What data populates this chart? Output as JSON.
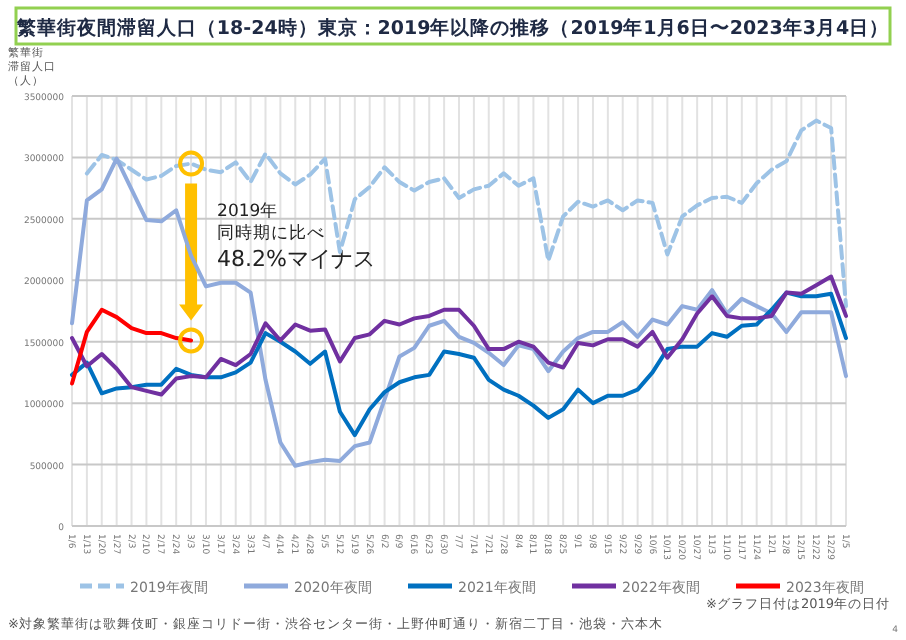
{
  "chart_data": {
    "type": "line",
    "title": "繁華街夜間滞留人口（18-24時）東京：2019年以降の推移（2019年1月6日〜2023年3月4日）",
    "ylabel": "繁華街滞留人口（人）",
    "categories": [
      "1/6",
      "1/13",
      "1/20",
      "1/27",
      "2/3",
      "2/10",
      "2/17",
      "2/24",
      "3/3",
      "3/10",
      "3/17",
      "3/24",
      "3/31",
      "4/7",
      "4/14",
      "4/21",
      "4/28",
      "5/5",
      "5/12",
      "5/19",
      "5/26",
      "6/2",
      "6/9",
      "6/16",
      "6/23",
      "6/30",
      "7/7",
      "7/14",
      "7/21",
      "7/28",
      "8/4",
      "8/11",
      "8/18",
      "8/25",
      "9/1",
      "9/8",
      "9/15",
      "9/22",
      "9/29",
      "10/6",
      "10/13",
      "10/20",
      "10/27",
      "11/3",
      "11/10",
      "11/17",
      "11/24",
      "12/1",
      "12/8",
      "12/15",
      "12/22",
      "12/29",
      "1/5"
    ],
    "series": [
      {
        "name": "2019年夜間",
        "color": "#9dc3e6",
        "line_style": "dashed",
        "values": [
          null,
          2870000,
          3020000,
          2980000,
          2900000,
          2820000,
          2850000,
          2930000,
          2950000,
          2900000,
          2880000,
          2960000,
          2800000,
          3030000,
          2870000,
          2780000,
          2860000,
          2990000,
          2230000,
          2660000,
          2760000,
          2920000,
          2800000,
          2730000,
          2800000,
          2830000,
          2670000,
          2740000,
          2770000,
          2870000,
          2770000,
          2830000,
          2160000,
          2520000,
          2640000,
          2600000,
          2650000,
          2570000,
          2650000,
          2630000,
          2210000,
          2520000,
          2610000,
          2670000,
          2680000,
          2630000,
          2790000,
          2900000,
          2970000,
          3220000,
          3300000,
          3240000,
          1790000
        ]
      },
      {
        "name": "2020年夜間",
        "color": "#8faadc",
        "values": [
          1650000,
          2650000,
          2740000,
          2990000,
          2740000,
          2490000,
          2480000,
          2570000,
          2200000,
          1950000,
          1980000,
          1980000,
          1900000,
          1190000,
          680000,
          490000,
          520000,
          540000,
          530000,
          650000,
          680000,
          1030000,
          1380000,
          1450000,
          1630000,
          1670000,
          1540000,
          1490000,
          1410000,
          1310000,
          1470000,
          1440000,
          1260000,
          1420000,
          1530000,
          1580000,
          1580000,
          1660000,
          1540000,
          1680000,
          1640000,
          1790000,
          1760000,
          1920000,
          1730000,
          1850000,
          1790000,
          1730000,
          1580000,
          1740000,
          1740000,
          1740000,
          1220000
        ]
      },
      {
        "name": "2021年夜間",
        "color": "#0070c0",
        "values": [
          1230000,
          1330000,
          1080000,
          1120000,
          1130000,
          1150000,
          1150000,
          1280000,
          1230000,
          1210000,
          1210000,
          1250000,
          1330000,
          1570000,
          1500000,
          1420000,
          1320000,
          1420000,
          930000,
          740000,
          950000,
          1090000,
          1170000,
          1210000,
          1230000,
          1420000,
          1400000,
          1370000,
          1190000,
          1110000,
          1060000,
          980000,
          880000,
          950000,
          1110000,
          1000000,
          1060000,
          1060000,
          1110000,
          1250000,
          1440000,
          1460000,
          1460000,
          1570000,
          1540000,
          1630000,
          1640000,
          1760000,
          1900000,
          1870000,
          1870000,
          1890000,
          1530000
        ]
      },
      {
        "name": "2022年夜間",
        "color": "#7030a0",
        "values": [
          1530000,
          1300000,
          1400000,
          1280000,
          1130000,
          1100000,
          1070000,
          1200000,
          1220000,
          1210000,
          1360000,
          1310000,
          1400000,
          1650000,
          1510000,
          1640000,
          1590000,
          1600000,
          1340000,
          1530000,
          1560000,
          1670000,
          1640000,
          1690000,
          1710000,
          1760000,
          1760000,
          1630000,
          1440000,
          1440000,
          1500000,
          1460000,
          1330000,
          1290000,
          1490000,
          1470000,
          1520000,
          1520000,
          1460000,
          1580000,
          1370000,
          1520000,
          1730000,
          1870000,
          1710000,
          1690000,
          1690000,
          1710000,
          1900000,
          1890000,
          1960000,
          2030000,
          1710000
        ]
      },
      {
        "name": "2023年夜間",
        "color": "#ff0000",
        "values": [
          1160000,
          1580000,
          1760000,
          1700000,
          1610000,
          1570000,
          1570000,
          1530000,
          1510000,
          null,
          null,
          null,
          null,
          null,
          null,
          null,
          null,
          null,
          null,
          null,
          null,
          null,
          null,
          null,
          null,
          null,
          null,
          null,
          null,
          null,
          null,
          null,
          null,
          null,
          null,
          null,
          null,
          null,
          null,
          null,
          null,
          null,
          null,
          null,
          null,
          null,
          null,
          null,
          null,
          null,
          null,
          null,
          null
        ]
      }
    ],
    "ylim": [
      0,
      3500000
    ],
    "yticks": [
      0,
      500000,
      1000000,
      1500000,
      2000000,
      2500000,
      3000000,
      3500000
    ],
    "grid": true,
    "legend": "bottom",
    "annotations": [
      "2019年同時期に比べ48.2%マイナス",
      "※グラフ日付は2019年の日付",
      "※対象繁華街は歌舞伎町・銀座コリドー街・渋谷センター街・上野仲町通り・新宿二丁目・池袋・六本木",
      "4"
    ]
  }
}
